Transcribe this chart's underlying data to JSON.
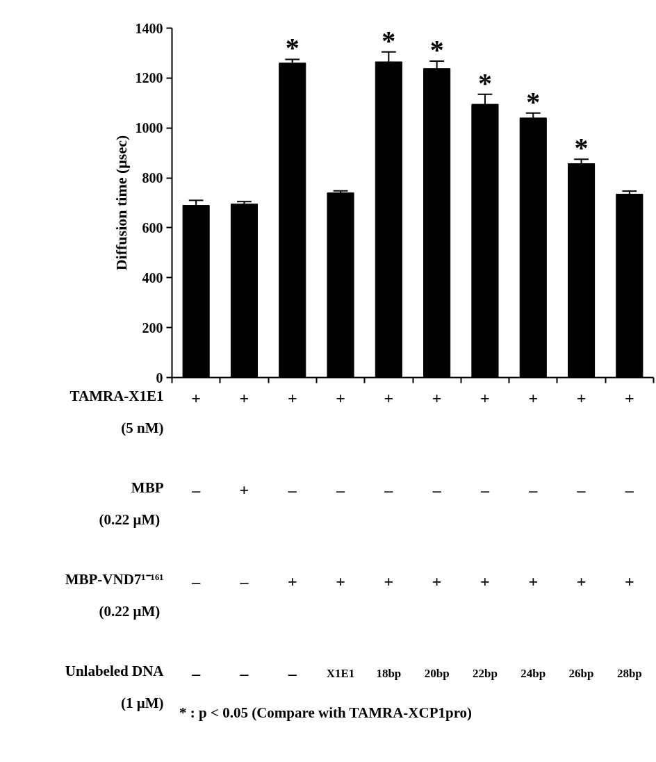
{
  "chart_data": {
    "type": "bar",
    "ylabel": "Diffusion time (μsec)",
    "categories": [
      null,
      null,
      null,
      null,
      null,
      null,
      null,
      null,
      null,
      null
    ],
    "values": [
      690,
      695,
      1260,
      740,
      1265,
      1238,
      1095,
      1040,
      857,
      735
    ],
    "errors": [
      20,
      10,
      15,
      8,
      40,
      30,
      40,
      20,
      18,
      12
    ],
    "value_labels": [
      null,
      null,
      "*",
      null,
      "*",
      "*",
      "*",
      "*",
      "*",
      null
    ],
    "color": "#000000",
    "ylim": [
      0,
      1400
    ],
    "yticks": [
      0,
      200,
      400,
      600,
      800,
      1000,
      1200,
      1400
    ],
    "grid": false,
    "annotations": [
      "TAMRA-X1E1\n(5 nM)",
      "+",
      "+",
      "+",
      "+",
      "+",
      "+",
      "+",
      "+",
      "+",
      "+",
      "MBP\n(0.22  μM)",
      "–",
      "+",
      "–",
      "–",
      "–",
      "–",
      "–",
      "–",
      "–",
      "–",
      "MBP-VND7¹⁻¹⁶¹\n(0.22  μM)",
      "–",
      "–",
      "+",
      "+",
      "+",
      "+",
      "+",
      "+",
      "+",
      "+",
      "Unlabeled DNA\n(1 μM)",
      "–",
      "–",
      "–",
      "X1E1",
      "18bp",
      "20bp",
      "22bp",
      "24bp",
      "26bp",
      "28bp",
      "*   : p < 0.05 (Compare with TAMRA-XCP1pro)"
    ]
  }
}
